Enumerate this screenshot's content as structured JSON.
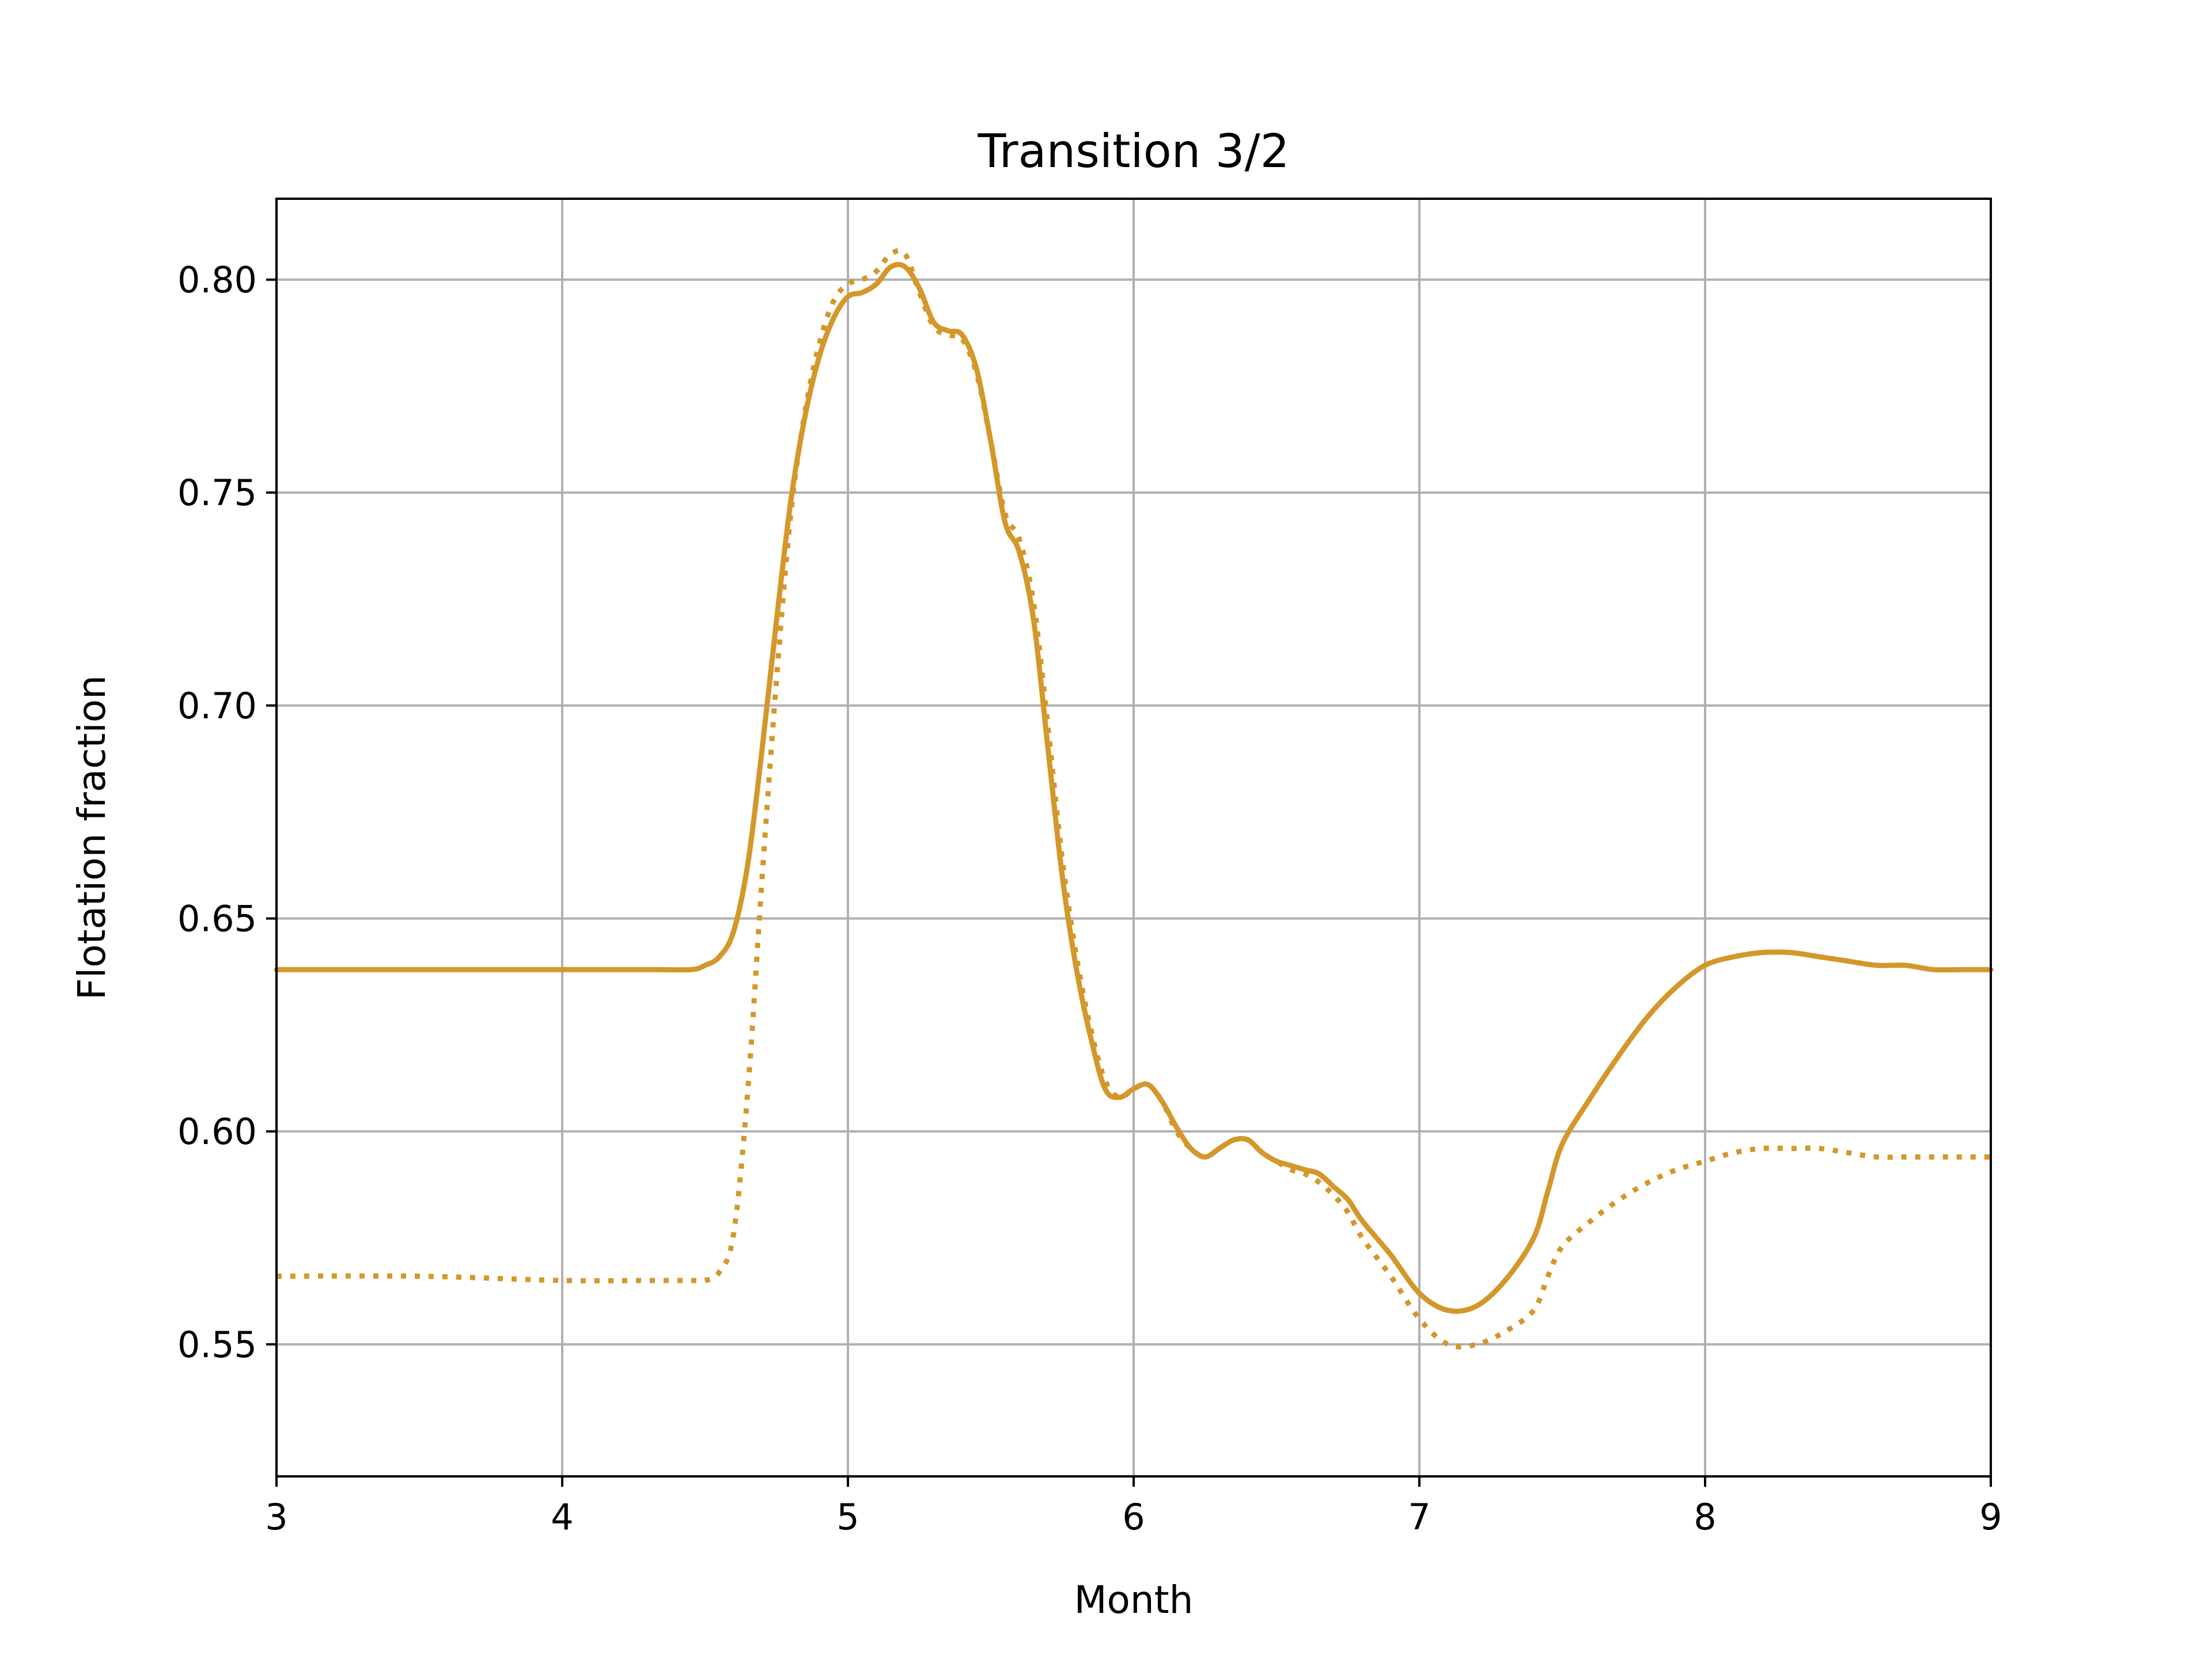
{
  "chart_data": {
    "type": "line",
    "title": "Transition 3/2",
    "xlabel": "Month",
    "ylabel": "Flotation fraction",
    "xlim": [
      3,
      9
    ],
    "ylim": [
      0.519,
      0.819
    ],
    "xticks": [
      3,
      4,
      5,
      6,
      7,
      8,
      9
    ],
    "xtick_labels": [
      "3",
      "4",
      "5",
      "6",
      "7",
      "8",
      "9"
    ],
    "yticks": [
      0.55,
      0.6,
      0.65,
      0.7,
      0.75,
      0.8
    ],
    "ytick_labels": [
      "0.55",
      "0.60",
      "0.65",
      "0.70",
      "0.75",
      "0.80"
    ],
    "grid": true,
    "legend": "none",
    "series": [
      {
        "style": "solid",
        "color": "#d4972a",
        "x": [
          3.0,
          3.5,
          4.0,
          4.3,
          4.45,
          4.5,
          4.55,
          4.6,
          4.65,
          4.7,
          4.75,
          4.8,
          4.85,
          4.9,
          4.95,
          5.0,
          5.05,
          5.1,
          5.15,
          5.2,
          5.25,
          5.3,
          5.35,
          5.4,
          5.45,
          5.5,
          5.55,
          5.6,
          5.65,
          5.7,
          5.75,
          5.8,
          5.85,
          5.9,
          5.95,
          6.0,
          6.05,
          6.1,
          6.15,
          6.2,
          6.25,
          6.3,
          6.35,
          6.4,
          6.45,
          6.5,
          6.55,
          6.6,
          6.65,
          6.7,
          6.75,
          6.8,
          6.9,
          7.0,
          7.1,
          7.2,
          7.3,
          7.4,
          7.45,
          7.5,
          7.6,
          7.7,
          7.8,
          7.9,
          8.0,
          8.1,
          8.2,
          8.3,
          8.4,
          8.5,
          8.6,
          8.7,
          8.8,
          8.9,
          9.0
        ],
        "y": [
          0.638,
          0.638,
          0.638,
          0.638,
          0.638,
          0.639,
          0.641,
          0.647,
          0.663,
          0.69,
          0.72,
          0.748,
          0.768,
          0.782,
          0.791,
          0.796,
          0.797,
          0.799,
          0.803,
          0.803,
          0.798,
          0.79,
          0.788,
          0.787,
          0.779,
          0.762,
          0.743,
          0.736,
          0.72,
          0.69,
          0.66,
          0.638,
          0.622,
          0.61,
          0.608,
          0.61,
          0.611,
          0.607,
          0.601,
          0.596,
          0.594,
          0.596,
          0.598,
          0.598,
          0.595,
          0.593,
          0.592,
          0.591,
          0.59,
          0.587,
          0.584,
          0.579,
          0.571,
          0.562,
          0.558,
          0.559,
          0.565,
          0.575,
          0.586,
          0.597,
          0.608,
          0.618,
          0.627,
          0.634,
          0.639,
          0.641,
          0.642,
          0.642,
          0.641,
          0.64,
          0.639,
          0.639,
          0.638,
          0.638,
          0.638
        ]
      },
      {
        "style": "dotted",
        "color": "#d4972a",
        "x": [
          3.0,
          3.5,
          4.0,
          4.3,
          4.45,
          4.5,
          4.55,
          4.6,
          4.65,
          4.7,
          4.75,
          4.8,
          4.85,
          4.9,
          4.95,
          5.0,
          5.05,
          5.1,
          5.15,
          5.2,
          5.25,
          5.3,
          5.35,
          5.4,
          5.45,
          5.5,
          5.55,
          5.6,
          5.65,
          5.7,
          5.75,
          5.8,
          5.85,
          5.9,
          5.95,
          6.0,
          6.05,
          6.1,
          6.15,
          6.2,
          6.25,
          6.3,
          6.35,
          6.4,
          6.45,
          6.5,
          6.55,
          6.6,
          6.65,
          6.7,
          6.75,
          6.8,
          6.9,
          7.0,
          7.1,
          7.2,
          7.3,
          7.4,
          7.45,
          7.5,
          7.6,
          7.7,
          7.8,
          7.9,
          8.0,
          8.1,
          8.2,
          8.3,
          8.4,
          8.5,
          8.6,
          8.7,
          8.8,
          8.9,
          9.0
        ],
        "y": [
          0.566,
          0.566,
          0.565,
          0.565,
          0.565,
          0.565,
          0.567,
          0.576,
          0.61,
          0.66,
          0.706,
          0.745,
          0.769,
          0.785,
          0.795,
          0.799,
          0.8,
          0.802,
          0.806,
          0.806,
          0.797,
          0.789,
          0.787,
          0.786,
          0.778,
          0.762,
          0.745,
          0.739,
          0.724,
          0.695,
          0.664,
          0.641,
          0.624,
          0.612,
          0.608,
          0.61,
          0.611,
          0.607,
          0.6,
          0.596,
          0.594,
          0.596,
          0.598,
          0.598,
          0.595,
          0.593,
          0.591,
          0.59,
          0.588,
          0.585,
          0.581,
          0.575,
          0.566,
          0.556,
          0.55,
          0.55,
          0.553,
          0.558,
          0.566,
          0.573,
          0.579,
          0.584,
          0.588,
          0.591,
          0.593,
          0.595,
          0.596,
          0.596,
          0.596,
          0.595,
          0.594,
          0.594,
          0.594,
          0.594,
          0.594
        ]
      }
    ]
  }
}
